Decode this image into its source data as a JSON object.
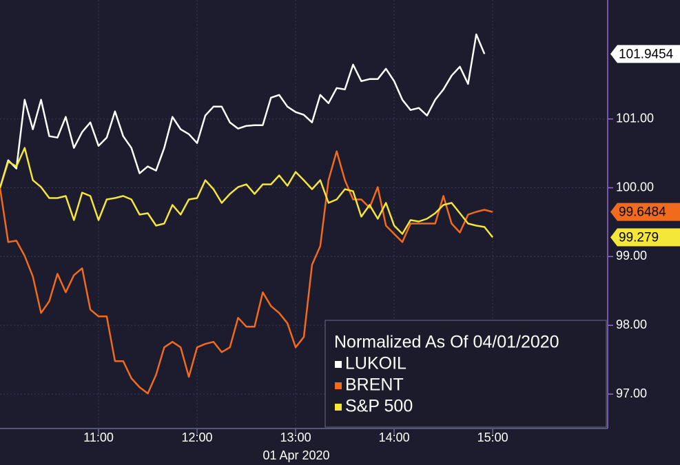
{
  "chart_data": {
    "type": "line",
    "x": [
      "10:00",
      "10:05",
      "10:10",
      "10:15",
      "10:20",
      "10:25",
      "10:30",
      "10:35",
      "10:40",
      "10:45",
      "10:50",
      "10:55",
      "11:00",
      "11:05",
      "11:10",
      "11:15",
      "11:20",
      "11:25",
      "11:30",
      "11:35",
      "11:40",
      "11:45",
      "11:50",
      "11:55",
      "12:00",
      "12:05",
      "12:10",
      "12:15",
      "12:20",
      "12:25",
      "12:30",
      "12:35",
      "12:40",
      "12:45",
      "12:50",
      "12:55",
      "13:00",
      "13:05",
      "13:10",
      "13:15",
      "13:20",
      "13:25",
      "13:30",
      "13:35",
      "13:40",
      "13:45",
      "13:50",
      "13:55",
      "14:00",
      "14:05",
      "14:10",
      "14:15",
      "14:20",
      "14:25",
      "14:30",
      "14:35",
      "14:40",
      "14:45",
      "14:50",
      "14:55",
      "15:00"
    ],
    "xlabel": "01 Apr 2020",
    "xlim": [
      "10:00",
      "16:10"
    ],
    "xticks": [
      "11:00",
      "12:00",
      "13:00",
      "14:00",
      "15:00"
    ],
    "ylim": [
      96.5,
      102.73
    ],
    "yticks": [
      {
        "value": 97,
        "label": "97.00"
      },
      {
        "value": 98,
        "label": "98.00"
      },
      {
        "value": 99,
        "label": "99.00"
      },
      {
        "value": 100,
        "label": "100.00"
      },
      {
        "value": 101,
        "label": "101.00"
      }
    ],
    "grid": true,
    "legend_title": "Normalized As Of 04/01/2020",
    "legend_position": "lower right",
    "series": [
      {
        "name": "LUKOIL",
        "color": "#ffffff",
        "values": [
          100.0,
          100.4,
          100.28,
          101.28,
          100.85,
          101.28,
          100.75,
          100.73,
          101.03,
          100.58,
          100.81,
          100.95,
          100.61,
          100.73,
          101.11,
          100.75,
          100.58,
          100.21,
          100.31,
          100.25,
          100.58,
          101.03,
          100.85,
          100.78,
          100.65,
          101.05,
          101.18,
          101.18,
          100.95,
          100.86,
          100.9,
          100.91,
          100.91,
          101.31,
          101.35,
          101.18,
          101.1,
          101.06,
          100.95,
          101.35,
          101.23,
          101.45,
          101.43,
          101.79,
          101.55,
          101.58,
          101.58,
          101.73,
          101.55,
          101.28,
          101.13,
          101.16,
          101.05,
          101.28,
          101.43,
          101.63,
          101.76,
          101.51,
          102.23,
          101.9454,
          null
        ]
      },
      {
        "name": "BRENT",
        "color": "#f26b1d",
        "values": [
          100.0,
          99.21,
          99.23,
          99.01,
          98.71,
          98.18,
          98.35,
          98.75,
          98.48,
          98.73,
          98.83,
          98.23,
          98.13,
          98.13,
          97.48,
          97.48,
          97.23,
          97.1,
          97.01,
          97.28,
          97.68,
          97.76,
          97.68,
          97.25,
          97.68,
          97.73,
          97.76,
          97.61,
          97.68,
          98.11,
          97.98,
          97.98,
          98.48,
          98.28,
          98.18,
          98.03,
          97.68,
          97.83,
          98.88,
          99.15,
          100.11,
          100.53,
          100.11,
          99.83,
          99.83,
          99.71,
          100.01,
          99.45,
          99.33,
          99.21,
          99.48,
          99.48,
          99.48,
          99.48,
          99.88,
          99.48,
          99.35,
          99.61,
          99.65,
          99.68,
          99.6484
        ]
      },
      {
        "name": "S&P 500",
        "color": "#f5e63a",
        "values": [
          100.0,
          100.38,
          100.31,
          100.58,
          100.11,
          100.01,
          99.85,
          99.85,
          99.88,
          99.53,
          99.93,
          99.88,
          99.53,
          99.83,
          99.85,
          99.88,
          99.83,
          99.61,
          99.63,
          99.45,
          99.48,
          99.75,
          99.61,
          99.83,
          99.85,
          100.11,
          99.98,
          99.78,
          99.91,
          100.01,
          100.05,
          99.91,
          100.05,
          100.05,
          100.18,
          100.03,
          100.23,
          100.11,
          99.98,
          100.11,
          99.78,
          99.83,
          99.98,
          99.95,
          99.58,
          99.75,
          99.55,
          99.78,
          99.45,
          99.33,
          99.53,
          99.51,
          99.55,
          99.63,
          99.75,
          99.78,
          99.63,
          99.48,
          99.45,
          99.43,
          99.279
        ]
      }
    ]
  }
}
